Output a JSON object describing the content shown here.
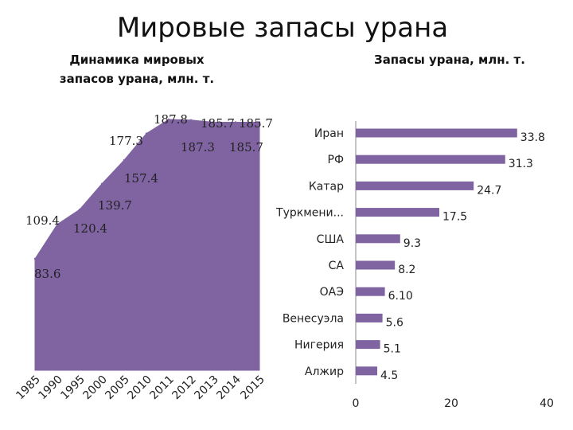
{
  "page": {
    "title": "Мировые запасы урана"
  },
  "colors": {
    "fill": "#8064a2",
    "axis": "#888888"
  },
  "chart_data": [
    {
      "type": "area",
      "title": "Динамика мировых запасов урана, млн. т.",
      "categories": [
        "1985",
        "1990",
        "1995",
        "2000",
        "2005",
        "2010",
        "2011",
        "2012",
        "2013",
        "2014",
        "2015"
      ],
      "values": [
        83.6,
        109.4,
        120.4,
        139.7,
        157.4,
        177.3,
        187.8,
        187.3,
        185.7,
        185.7,
        185.7
      ],
      "labels": [
        "83.6",
        "109.4",
        "120.4",
        "139.7",
        "157.4",
        "177.3",
        "187.8",
        "187.3",
        "185.7",
        "185.7",
        "185.7"
      ],
      "color": "#8064a2"
    },
    {
      "type": "bar",
      "orientation": "horizontal",
      "title": "Запасы урана, млн. т.",
      "categories": [
        "Иран",
        "РФ",
        "Катар",
        "Туркмени...",
        "США",
        "СА",
        "ОАЭ",
        "Венесуэла",
        "Нигерия",
        "Алжир"
      ],
      "values": [
        33.8,
        31.3,
        24.7,
        17.5,
        9.3,
        8.2,
        6.1,
        5.6,
        5.1,
        4.5
      ],
      "labels": [
        "33.8",
        "31.3",
        "24.7",
        "17.5",
        "9.3",
        "8.2",
        "6.10",
        "5.6",
        "5.1",
        "4.5"
      ],
      "xlim": [
        0,
        40
      ],
      "xticks": [
        "0",
        "20",
        "40"
      ],
      "color": "#8064a2"
    }
  ]
}
